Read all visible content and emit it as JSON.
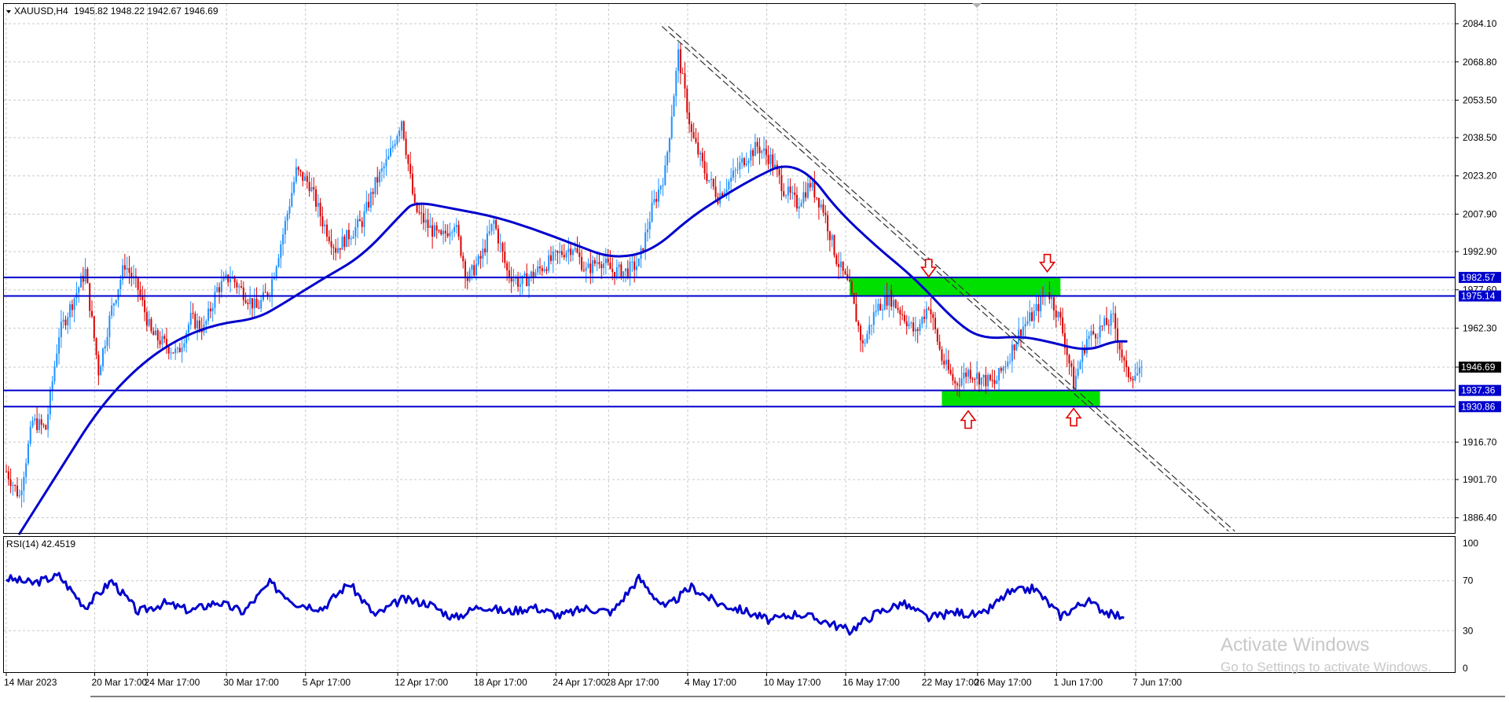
{
  "header": {
    "symbol_label": "XAUUSD,H4",
    "ohlc_label": "1945.82 1948.22 1942.67 1946.69"
  },
  "rsi_panel": {
    "label": "RSI(14) 42.4519"
  },
  "watermark": {
    "title": "Activate Windows",
    "subtitle": "Go to Settings to activate Windows."
  },
  "colors": {
    "bull_candle": "#1e90ff",
    "bear_candle": "#dc0000",
    "moving_average": "#0000cd",
    "level_line": "#0000cd",
    "zone_fill": "#00e000",
    "trendline": "#333333",
    "signal_arrow": "#e00000",
    "current_price_tag": "#000000",
    "grid": "#c8c8c8"
  },
  "chart_data": [
    {
      "type": "candlestick",
      "symbol": "XAUUSD",
      "timeframe": "H4",
      "open": 1945.82,
      "high": 1948.22,
      "low": 1942.67,
      "close": 1946.69,
      "ylim": [
        1880,
        2092
      ],
      "y_ticks": [
        "2084.10",
        "2068.80",
        "2053.50",
        "2038.50",
        "2023.20",
        "2007.90",
        "1992.90",
        "1977.60",
        "1962.30",
        "1946.69",
        "1916.70",
        "1901.70",
        "1886.40"
      ],
      "x_tick_labels": [
        "14 Mar 2023",
        "20 Mar 17:00",
        "24 Mar 17:00",
        "30 Mar 17:00",
        "5 Apr 17:00",
        "12 Apr 17:00",
        "18 Apr 17:00",
        "24 Apr 17:00",
        "28 Apr 17:00",
        "4 May 17:00",
        "10 May 17:00",
        "16 May 17:00",
        "22 May 17:00",
        "26 May 17:00",
        "1 Jun 17:00",
        "7 Jun 17:00"
      ],
      "grid": true,
      "horizontal_levels": [
        {
          "price": 1982.57,
          "label": "1982.57"
        },
        {
          "price": 1975.14,
          "label": "1975.14"
        },
        {
          "price": 1937.36,
          "label": "1937.36"
        },
        {
          "price": 1930.86,
          "label": "1930.86"
        }
      ],
      "current_price": {
        "price": 1946.69,
        "label": "1946.69"
      },
      "zones": [
        {
          "name": "resistance",
          "from_date": "17 May",
          "to_date": "2 Jun",
          "y_low": 1975.14,
          "y_high": 1982.57
        },
        {
          "name": "support",
          "from_date": "24 May",
          "to_date": "5 Jun",
          "y_low": 1930.86,
          "y_high": 1937.36
        }
      ],
      "trendline": {
        "style": "double-dashed",
        "start": [
          "3 May",
          2083
        ],
        "end": [
          "15 Jun",
          1881
        ]
      },
      "arrows": [
        {
          "direction": "down",
          "date": "23 May",
          "price": 1986
        },
        {
          "direction": "down",
          "date": "1 Jun",
          "price": 1988
        },
        {
          "direction": "up",
          "date": "26 May",
          "price": 1926
        },
        {
          "direction": "up",
          "date": "3 Jun",
          "price": 1927
        }
      ],
      "ma_path": [
        [
          "15 Mar",
          1880
        ],
        [
          "18 Mar",
          1905
        ],
        [
          "21 Mar",
          1930
        ],
        [
          "24 Mar",
          1947
        ],
        [
          "27 Mar",
          1958
        ],
        [
          "30 Mar",
          1964
        ],
        [
          "2 Apr",
          1966
        ],
        [
          "4 Apr",
          1972
        ],
        [
          "7 Apr",
          1982
        ],
        [
          "10 Apr",
          1991
        ],
        [
          "13 Apr",
          2008
        ],
        [
          "14 Apr",
          2013
        ],
        [
          "17 Apr",
          2010
        ],
        [
          "20 Apr",
          2007
        ],
        [
          "23 Apr",
          2002
        ],
        [
          "26 Apr",
          1996
        ],
        [
          "29 Apr",
          1990
        ],
        [
          "2 May",
          1993
        ],
        [
          "5 May",
          2007
        ],
        [
          "8 May",
          2017
        ],
        [
          "10 May",
          2023
        ],
        [
          "12 May",
          2028
        ],
        [
          "14 May",
          2024
        ],
        [
          "16 May",
          2010
        ],
        [
          "19 May",
          1995
        ],
        [
          "22 May",
          1982
        ],
        [
          "25 May",
          1965
        ],
        [
          "27 May",
          1958
        ],
        [
          "30 May",
          1959
        ],
        [
          "1 Jun",
          1957
        ],
        [
          "4 Jun",
          1953
        ],
        [
          "6 Jun",
          1957
        ],
        [
          "7 Jun",
          1957
        ]
      ]
    },
    {
      "type": "line",
      "name": "RSI(14)",
      "value": 42.4519,
      "ylim": [
        0,
        100
      ],
      "y_ticks": [
        0,
        30,
        70,
        100
      ],
      "levels": [
        30,
        70
      ],
      "x": [
        "14 Mar",
        "16 Mar",
        "18 Mar",
        "20 Mar",
        "22 Mar",
        "24 Mar",
        "26 Mar",
        "28 Mar",
        "30 Mar",
        "1 Apr",
        "3 Apr",
        "5 Apr",
        "7 Apr",
        "9 Apr",
        "11 Apr",
        "13 Apr",
        "15 Apr",
        "17 Apr",
        "19 Apr",
        "21 Apr",
        "23 Apr",
        "25 Apr",
        "27 Apr",
        "29 Apr",
        "1 May",
        "3 May",
        "5 May",
        "7 May",
        "9 May",
        "11 May",
        "13 May",
        "15 May",
        "17 May",
        "19 May",
        "21 May",
        "23 May",
        "25 May",
        "27 May",
        "29 May",
        "31 May",
        "2 Jun",
        "4 Jun",
        "6 Jun",
        "7 Jun"
      ],
      "values": [
        72,
        68,
        74,
        49,
        70,
        45,
        52,
        46,
        53,
        45,
        68,
        52,
        48,
        68,
        42,
        55,
        52,
        40,
        50,
        45,
        49,
        42,
        48,
        45,
        72,
        48,
        65,
        52,
        46,
        38,
        44,
        38,
        30,
        44,
        52,
        40,
        45,
        42,
        60,
        64,
        42,
        54,
        42,
        43
      ]
    }
  ]
}
